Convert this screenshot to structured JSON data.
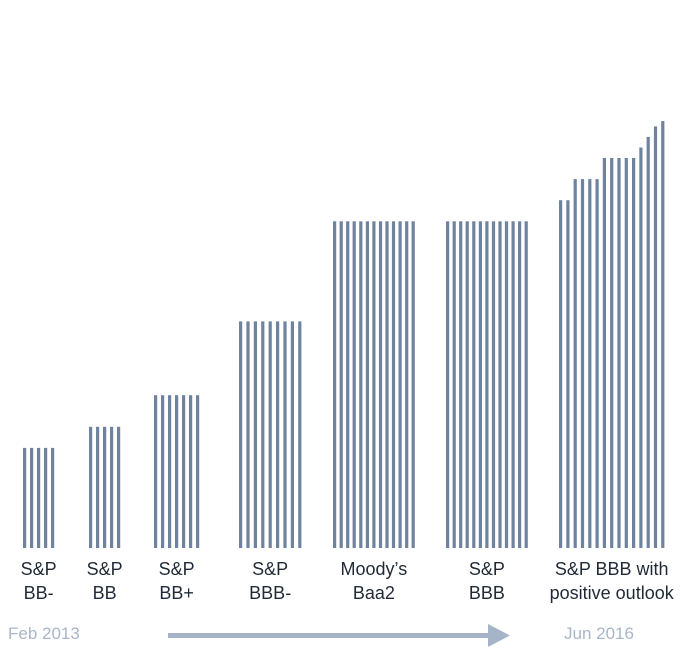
{
  "colors": {
    "bar": "#6f839f",
    "arrow": "#a6b4c7",
    "date_text": "#a8b6c8",
    "label_text": "#1f2a36"
  },
  "timeline": {
    "start_label": "Feb 2013",
    "end_label": "Jun 2016",
    "arrow_direction": "right"
  },
  "chart_data": {
    "type": "bar",
    "style": "striped vertical bars, each group drawn as thin vertical lines",
    "y_axis_visible": false,
    "ylim": [
      0,
      100
    ],
    "groups": [
      {
        "label_lines": [
          "S&P",
          "BB-"
        ],
        "values": [
          19,
          19,
          19,
          19,
          19
        ]
      },
      {
        "label_lines": [
          "S&P",
          "BB"
        ],
        "values": [
          23,
          23,
          23,
          23,
          23
        ]
      },
      {
        "label_lines": [
          "S&P",
          "BB+"
        ],
        "values": [
          29,
          29,
          29,
          29,
          29,
          29,
          29
        ]
      },
      {
        "label_lines": [
          "S&P",
          "BBB-"
        ],
        "values": [
          43,
          43,
          43,
          43,
          43,
          43,
          43,
          43,
          43
        ]
      },
      {
        "label_lines": [
          "Moody’s",
          "Baa2"
        ],
        "values": [
          62,
          62,
          62,
          62,
          62,
          62,
          62,
          62,
          62,
          62,
          62,
          62,
          62
        ]
      },
      {
        "label_lines": [
          "S&P",
          "BBB"
        ],
        "values": [
          62,
          62,
          62,
          62,
          62,
          62,
          62,
          62,
          62,
          62,
          62,
          62,
          62
        ]
      },
      {
        "label_lines": [
          "S&P BBB with",
          "positive outlook"
        ],
        "values": [
          66,
          66,
          70,
          70,
          70,
          70,
          74,
          74,
          74,
          74,
          74,
          76,
          78,
          80,
          81
        ]
      }
    ]
  }
}
